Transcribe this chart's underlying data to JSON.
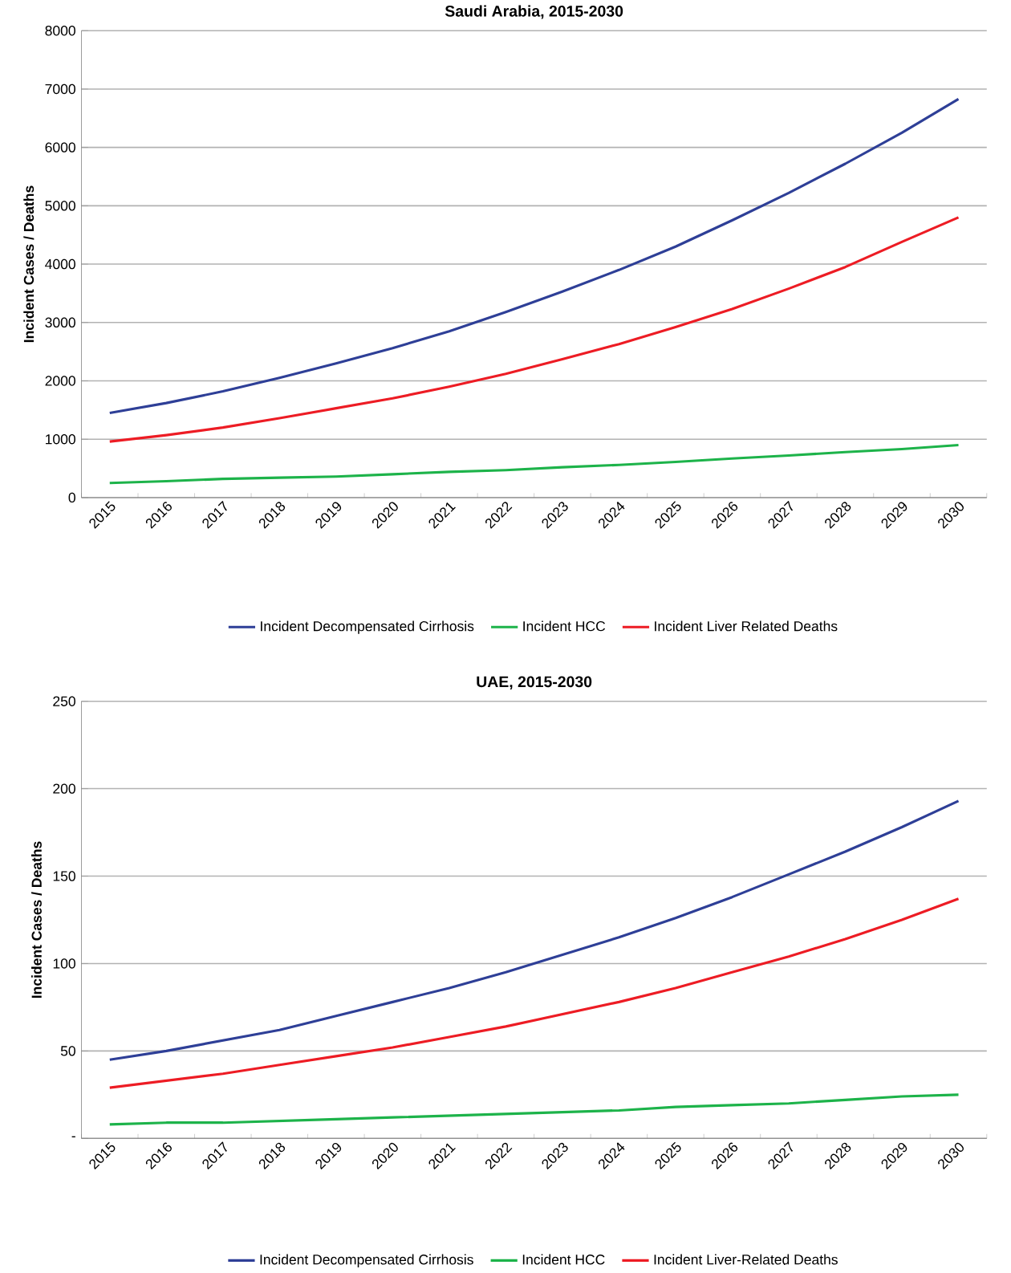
{
  "chart_data": [
    {
      "type": "line",
      "title": "Saudi Arabia, 2015-2030",
      "ylabel": "Incident Cases / Deaths",
      "categories": [
        "2015",
        "2016",
        "2017",
        "2018",
        "2019",
        "2020",
        "2021",
        "2022",
        "2023",
        "2024",
        "2025",
        "2026",
        "2027",
        "2028",
        "2029",
        "2030"
      ],
      "series": [
        {
          "name": "Incident Decompensated Cirrhosis",
          "color": "#2e3f97",
          "values": [
            1450,
            1620,
            1820,
            2050,
            2300,
            2560,
            2850,
            3180,
            3530,
            3900,
            4300,
            4750,
            5220,
            5720,
            6250,
            6830
          ]
        },
        {
          "name": "Incident HCC",
          "color": "#1db34a",
          "values": [
            250,
            280,
            320,
            340,
            360,
            400,
            440,
            470,
            520,
            560,
            610,
            670,
            720,
            780,
            830,
            900
          ]
        },
        {
          "name": "Incident Liver Related Deaths",
          "color": "#ed1c24",
          "values": [
            960,
            1070,
            1200,
            1360,
            1530,
            1700,
            1900,
            2120,
            2370,
            2630,
            2920,
            3230,
            3580,
            3950,
            4380,
            4800
          ]
        }
      ],
      "ylim": [
        0,
        8000
      ],
      "yticks": [
        0,
        1000,
        2000,
        3000,
        4000,
        5000,
        6000,
        7000,
        8000
      ],
      "grid": "y",
      "legend": "bottom",
      "marker": "none",
      "line_style": "solid"
    },
    {
      "type": "line",
      "title": "UAE, 2015-2030",
      "ylabel": "Incident Cases / Deaths",
      "categories": [
        "2015",
        "2016",
        "2017",
        "2018",
        "2019",
        "2020",
        "2021",
        "2022",
        "2023",
        "2024",
        "2025",
        "2026",
        "2027",
        "2028",
        "2029",
        "2030"
      ],
      "series": [
        {
          "name": "Incident Decompensated Cirrhosis",
          "color": "#2e3f97",
          "values": [
            45,
            50,
            56,
            62,
            70,
            78,
            86,
            95,
            105,
            115,
            126,
            138,
            151,
            164,
            178,
            193
          ]
        },
        {
          "name": "Incident HCC",
          "color": "#1db34a",
          "values": [
            8,
            9,
            9,
            10,
            11,
            12,
            13,
            14,
            15,
            16,
            18,
            19,
            20,
            22,
            24,
            25
          ]
        },
        {
          "name": "Incident Liver-Related Deaths",
          "color": "#ed1c24",
          "values": [
            29,
            33,
            37,
            42,
            47,
            52,
            58,
            64,
            71,
            78,
            86,
            95,
            104,
            114,
            125,
            137
          ]
        }
      ],
      "ylim": [
        0,
        250
      ],
      "yticks": [
        {
          "value": 0,
          "label": "-"
        },
        50,
        100,
        150,
        200,
        250
      ],
      "grid": "y",
      "legend": "bottom",
      "marker": "none",
      "line_style": "solid"
    }
  ]
}
